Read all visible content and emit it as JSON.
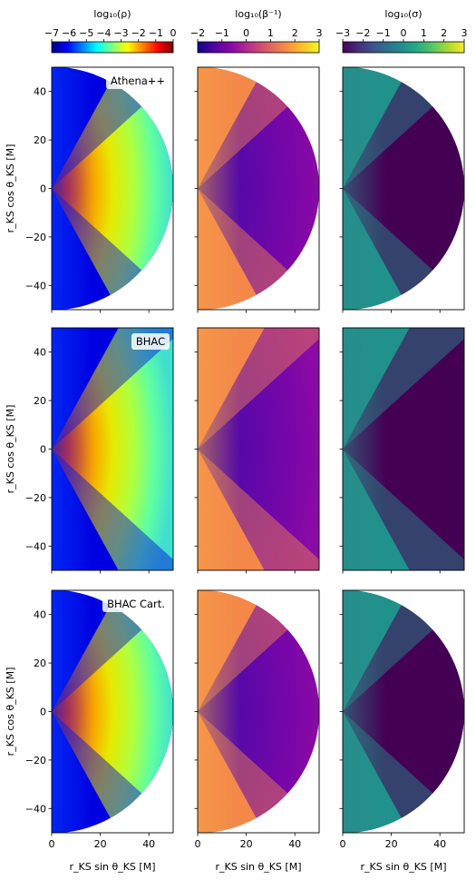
{
  "colors": {
    "jet": [
      "#00007f",
      "#0000ff",
      "#007fff",
      "#00ffff",
      "#7fff7f",
      "#ffff00",
      "#ff7f00",
      "#ff0000",
      "#7f0000"
    ],
    "plasma": [
      "#0d0887",
      "#5302a3",
      "#8b0aa5",
      "#b83289",
      "#db5c68",
      "#f48849",
      "#febd2a",
      "#f0f921"
    ],
    "viridis": [
      "#440154",
      "#472d7b",
      "#3b528b",
      "#2c728e",
      "#21918c",
      "#28ae80",
      "#5ec962",
      "#addc30",
      "#fde725"
    ]
  },
  "chart_data": {
    "type": "heatmap",
    "rows": [
      "Athena++",
      "BHAC",
      "BHAC Cart."
    ],
    "columns": [
      {
        "colorbar_label": "log₁₀(ρ)",
        "cmap": "jet",
        "range": [
          -7,
          0
        ],
        "ticks": [
          "−7",
          "−6",
          "−5",
          "−4",
          "−3",
          "−2",
          "−1",
          "0"
        ]
      },
      {
        "colorbar_label": "log₁₀(β⁻¹)",
        "cmap": "plasma",
        "range": [
          -2,
          3
        ],
        "ticks": [
          "−2",
          "−1",
          "0",
          "1",
          "2",
          "3"
        ]
      },
      {
        "colorbar_label": "log₁₀(σ)",
        "cmap": "viridis",
        "range": [
          -3,
          3
        ],
        "ticks": [
          "−3",
          "−2",
          "−1",
          "0",
          "1",
          "2",
          "3"
        ]
      }
    ],
    "panel_domains": [
      "half-disk",
      "full-box",
      "half-disk"
    ],
    "xlabel": "r_KS sin θ_KS [M]",
    "ylabel": "r_KS cos θ_KS [M]",
    "xlim": [
      0,
      50
    ],
    "ylim": [
      -50,
      50
    ],
    "xticks": [
      "0",
      "20",
      "40"
    ],
    "yticks": [
      "40",
      "20",
      "0",
      "−20",
      "−40"
    ],
    "xtick_values": [
      0,
      20,
      40
    ],
    "ytick_values": [
      40,
      20,
      0,
      -20,
      -40
    ]
  }
}
